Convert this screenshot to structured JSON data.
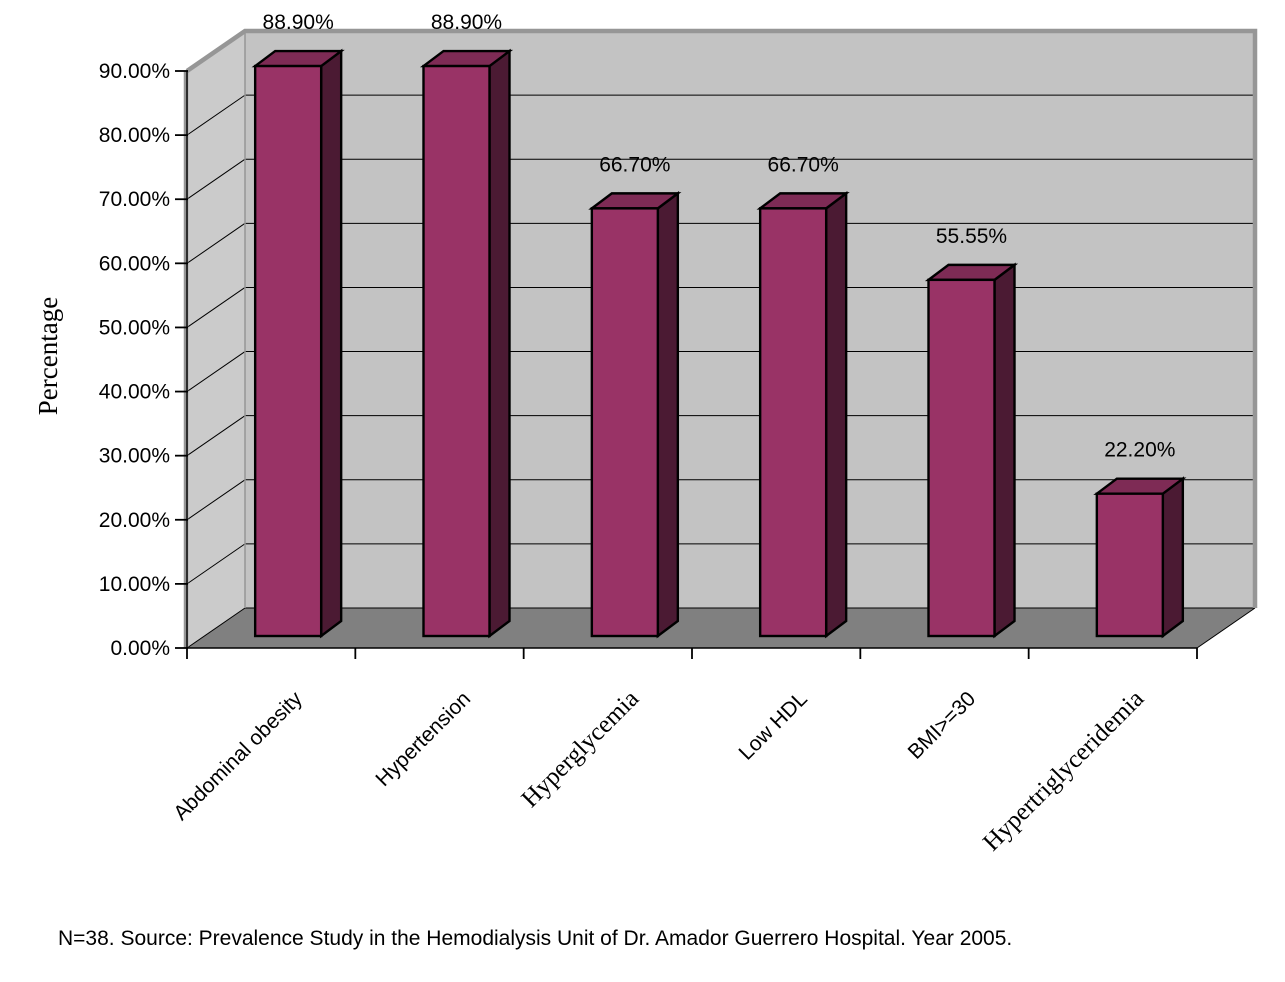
{
  "chart_data": {
    "type": "bar",
    "style": "3d-column",
    "categories": [
      "Abdominal obesity",
      "Hypertension",
      "Hyperglycemia",
      "Low HDL",
      "BMI>=30",
      "Hypertriglyceridemia"
    ],
    "values": [
      88.9,
      88.9,
      66.7,
      66.7,
      55.55,
      22.2
    ],
    "value_labels": [
      "88.90%",
      "88.90%",
      "66.70%",
      "66.70%",
      "55.55%",
      "22.20%"
    ],
    "title": "",
    "xlabel": "",
    "ylabel": "Percentage",
    "ylim": [
      0,
      90
    ],
    "y_tick_step": 10,
    "y_tick_labels": [
      "0.00%",
      "10.00%",
      "20.00%",
      "30.00%",
      "40.00%",
      "50.00%",
      "60.00%",
      "70.00%",
      "80.00%",
      "90.00%"
    ],
    "grid": true,
    "legend": "none",
    "label_fonts": [
      "sans",
      "sans",
      "serif",
      "sans",
      "sans",
      "serif"
    ],
    "colors": {
      "bar_front": "#993366",
      "bar_top": "#7E2B55",
      "bar_side": "#4B1A33",
      "bar_outline": "#000000",
      "back_wall": "#C3C3C3",
      "left_wall": "#CBCBCB",
      "floor": "#808080",
      "wall_border": "#969696",
      "gridline": "#000000",
      "text": "#000000",
      "background": "#FFFFFF"
    },
    "source_note": "N=38. Source: Prevalence Study in the Hemodialysis Unit of Dr. Amador Guerrero Hospital. Year 2005."
  }
}
